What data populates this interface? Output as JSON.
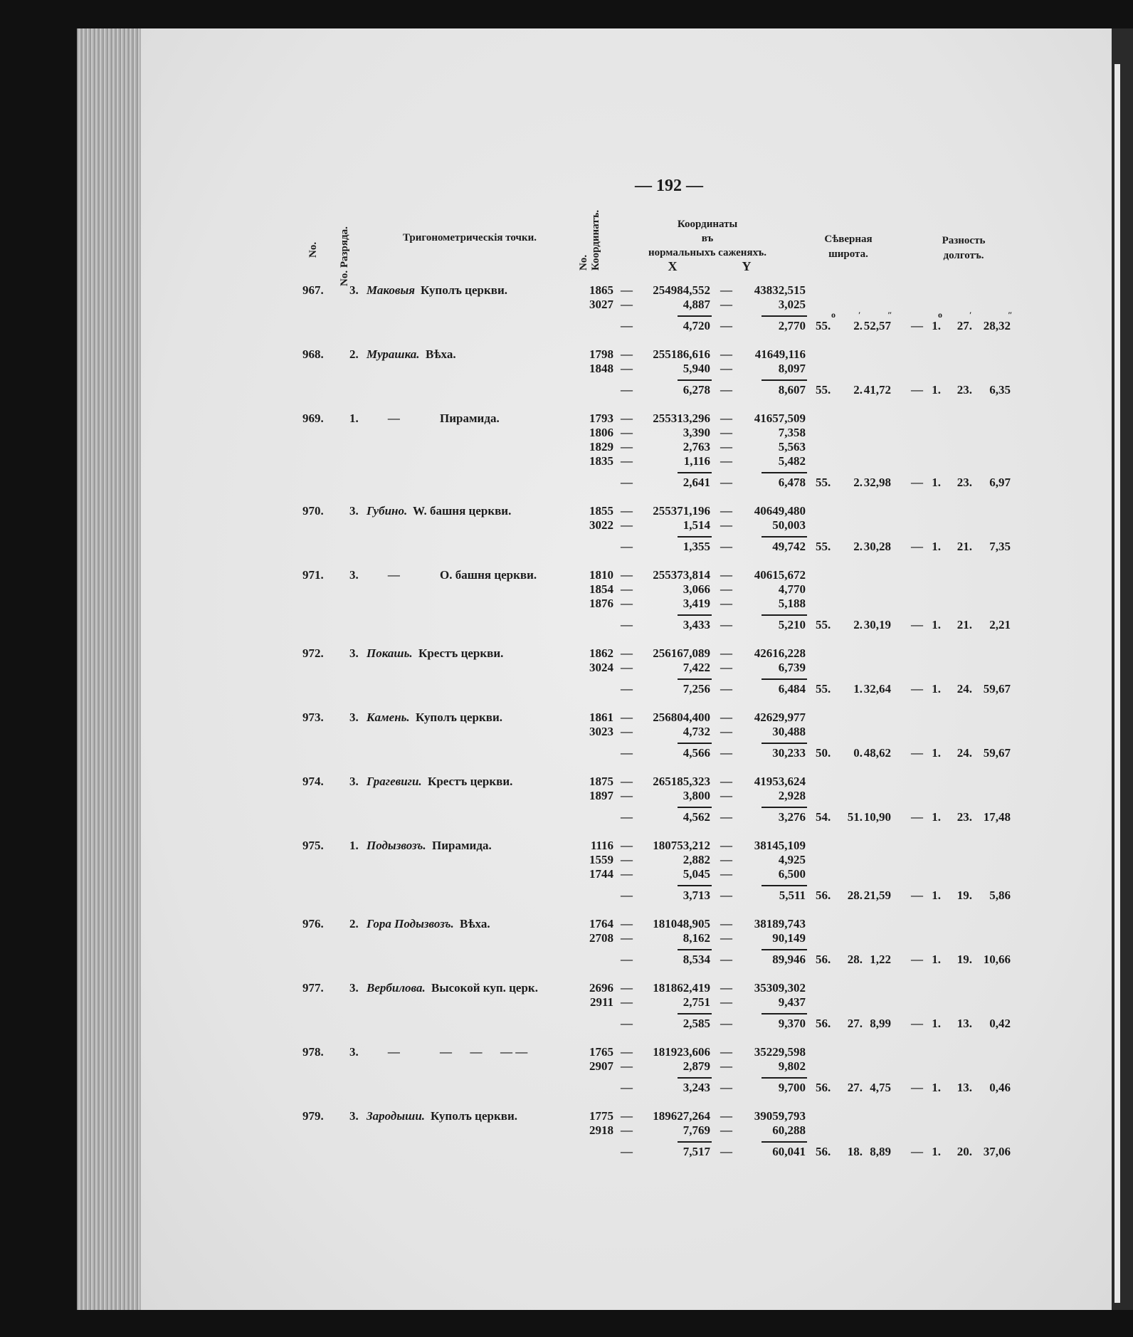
{
  "page_number": "— 192 —",
  "header": {
    "no": "No.",
    "rank": "No. Разряда.",
    "points": "Тригонометрическія точки.",
    "coord_no": "No. Координатъ.",
    "coords_line1": "Координаты",
    "coords_line2": "въ",
    "coords_line3": "нормальныхъ саженяхъ.",
    "x": "X",
    "y": "Y",
    "lat": "Сѣверная широта.",
    "lon": "Разность долготъ."
  },
  "dash": "—",
  "entries": [
    {
      "no": "967.",
      "rank": "3.",
      "place": "Маковыя",
      "object": "Куполъ церкви.",
      "rows": [
        {
          "ref": "1865",
          "x": "254984,552",
          "y": "43832,515"
        },
        {
          "ref": "3027",
          "x": "4,887",
          "y": "3,025"
        }
      ],
      "sum": {
        "x": "4,720",
        "y": "2,770"
      },
      "lat": [
        "55.",
        "2.",
        "52,57"
      ],
      "lon": [
        "1.",
        "27.",
        "28,32"
      ],
      "lat_marks": [
        "o",
        "′",
        "″"
      ],
      "lon_marks": [
        "o",
        "′",
        "″"
      ]
    },
    {
      "no": "968.",
      "rank": "2.",
      "place": "Мурашка.",
      "object": "Вѣха.",
      "rows": [
        {
          "ref": "1798",
          "x": "255186,616",
          "y": "41649,116"
        },
        {
          "ref": "1848",
          "x": "5,940",
          "y": "8,097"
        }
      ],
      "sum": {
        "x": "6,278",
        "y": "8,607"
      },
      "lat": [
        "55.",
        "2.",
        "41,72"
      ],
      "lon": [
        "1.",
        "23.",
        "6,35"
      ]
    },
    {
      "no": "969.",
      "rank": "1.",
      "place": "—",
      "object": "Пирамида.",
      "rows": [
        {
          "ref": "1793",
          "x": "255313,296",
          "y": "41657,509"
        },
        {
          "ref": "1806",
          "x": "3,390",
          "y": "7,358"
        },
        {
          "ref": "1829",
          "x": "2,763",
          "y": "5,563"
        },
        {
          "ref": "1835",
          "x": "1,116",
          "y": "5,482"
        }
      ],
      "sum": {
        "x": "2,641",
        "y": "6,478"
      },
      "lat": [
        "55.",
        "2.",
        "32,98"
      ],
      "lon": [
        "1.",
        "23.",
        "6,97"
      ]
    },
    {
      "no": "970.",
      "rank": "3.",
      "place": "Губино.",
      "object": "W. башня церкви.",
      "rows": [
        {
          "ref": "1855",
          "x": "255371,196",
          "y": "40649,480"
        },
        {
          "ref": "3022",
          "x": "1,514",
          "y": "50,003"
        }
      ],
      "sum": {
        "x": "1,355",
        "y": "49,742"
      },
      "lat": [
        "55.",
        "2.",
        "30,28"
      ],
      "lon": [
        "1.",
        "21.",
        "7,35"
      ]
    },
    {
      "no": "971.",
      "rank": "3.",
      "place": "—",
      "object": "О. башня церкви.",
      "rows": [
        {
          "ref": "1810",
          "x": "255373,814",
          "y": "40615,672"
        },
        {
          "ref": "1854",
          "x": "3,066",
          "y": "4,770"
        },
        {
          "ref": "1876",
          "x": "3,419",
          "y": "5,188"
        }
      ],
      "sum": {
        "x": "3,433",
        "y": "5,210"
      },
      "lat": [
        "55.",
        "2.",
        "30,19"
      ],
      "lon": [
        "1.",
        "21.",
        "2,21"
      ]
    },
    {
      "no": "972.",
      "rank": "3.",
      "place": "Покашь.",
      "object": "Крестъ церкви.",
      "rows": [
        {
          "ref": "1862",
          "x": "256167,089",
          "y": "42616,228"
        },
        {
          "ref": "3024",
          "x": "7,422",
          "y": "6,739"
        }
      ],
      "sum": {
        "x": "7,256",
        "y": "6,484"
      },
      "lat": [
        "55.",
        "1.",
        "32,64"
      ],
      "lon": [
        "1.",
        "24.",
        "59,67"
      ]
    },
    {
      "no": "973.",
      "rank": "3.",
      "place": "Камень.",
      "object": "Куполъ церкви.",
      "rows": [
        {
          "ref": "1861",
          "x": "256804,400",
          "y": "42629,977"
        },
        {
          "ref": "3023",
          "x": "4,732",
          "y": "30,488"
        }
      ],
      "sum": {
        "x": "4,566",
        "y": "30,233"
      },
      "lat": [
        "50.",
        "0.",
        "48,62"
      ],
      "lon": [
        "1.",
        "24.",
        "59,67"
      ]
    },
    {
      "no": "974.",
      "rank": "3.",
      "place": "Грагевиги.",
      "object": "Крестъ церкви.",
      "rows": [
        {
          "ref": "1875",
          "x": "265185,323",
          "y": "41953,624"
        },
        {
          "ref": "1897",
          "x": "3,800",
          "y": "2,928"
        }
      ],
      "sum": {
        "x": "4,562",
        "y": "3,276"
      },
      "lat": [
        "54.",
        "51.",
        "10,90"
      ],
      "lon": [
        "1.",
        "23.",
        "17,48"
      ]
    },
    {
      "no": "975.",
      "rank": "1.",
      "place": "Подызвозъ.",
      "object": "Пирамида.",
      "rows": [
        {
          "ref": "1116",
          "x": "180753,212",
          "y": "38145,109"
        },
        {
          "ref": "1559",
          "x": "2,882",
          "y": "4,925"
        },
        {
          "ref": "1744",
          "x": "5,045",
          "y": "6,500"
        }
      ],
      "sum": {
        "x": "3,713",
        "y": "5,511"
      },
      "lat": [
        "56.",
        "28.",
        "21,59"
      ],
      "lon": [
        "1.",
        "19.",
        "5,86"
      ]
    },
    {
      "no": "976.",
      "rank": "2.",
      "place": "Гора Подызвозъ.",
      "object": "Вѣха.",
      "rows": [
        {
          "ref": "1764",
          "x": "181048,905",
          "y": "38189,743"
        },
        {
          "ref": "2708",
          "x": "8,162",
          "y": "90,149"
        }
      ],
      "sum": {
        "x": "8,534",
        "y": "89,946"
      },
      "lat": [
        "56.",
        "28.",
        "1,22"
      ],
      "lon": [
        "1.",
        "19.",
        "10,66"
      ]
    },
    {
      "no": "977.",
      "rank": "3.",
      "place": "Вербилова.",
      "object": "Высокой куп. церк.",
      "rows": [
        {
          "ref": "2696",
          "x": "181862,419",
          "y": "35309,302"
        },
        {
          "ref": "2911",
          "x": "2,751",
          "y": "9,437"
        }
      ],
      "sum": {
        "x": "2,585",
        "y": "9,370"
      },
      "lat": [
        "56.",
        "27.",
        "8,99"
      ],
      "lon": [
        "1.",
        "13.",
        "0,42"
      ]
    },
    {
      "no": "978.",
      "rank": "3.",
      "place": "—",
      "object": "—      —      — —",
      "rows": [
        {
          "ref": "1765",
          "x": "181923,606",
          "y": "35229,598"
        },
        {
          "ref": "2907",
          "x": "2,879",
          "y": "9,802"
        }
      ],
      "sum": {
        "x": "3,243",
        "y": "9,700"
      },
      "lat": [
        "56.",
        "27.",
        "4,75"
      ],
      "lon": [
        "1.",
        "13.",
        "0,46"
      ]
    },
    {
      "no": "979.",
      "rank": "3.",
      "place": "Зародыши.",
      "object": "Куполъ церкви.",
      "rows": [
        {
          "ref": "1775",
          "x": "189627,264",
          "y": "39059,793"
        },
        {
          "ref": "2918",
          "x": "7,769",
          "y": "60,288"
        }
      ],
      "sum": {
        "x": "7,517",
        "y": "60,041"
      },
      "lat": [
        "56.",
        "18.",
        "8,89"
      ],
      "lon": [
        "1.",
        "20.",
        "37,06"
      ]
    }
  ]
}
